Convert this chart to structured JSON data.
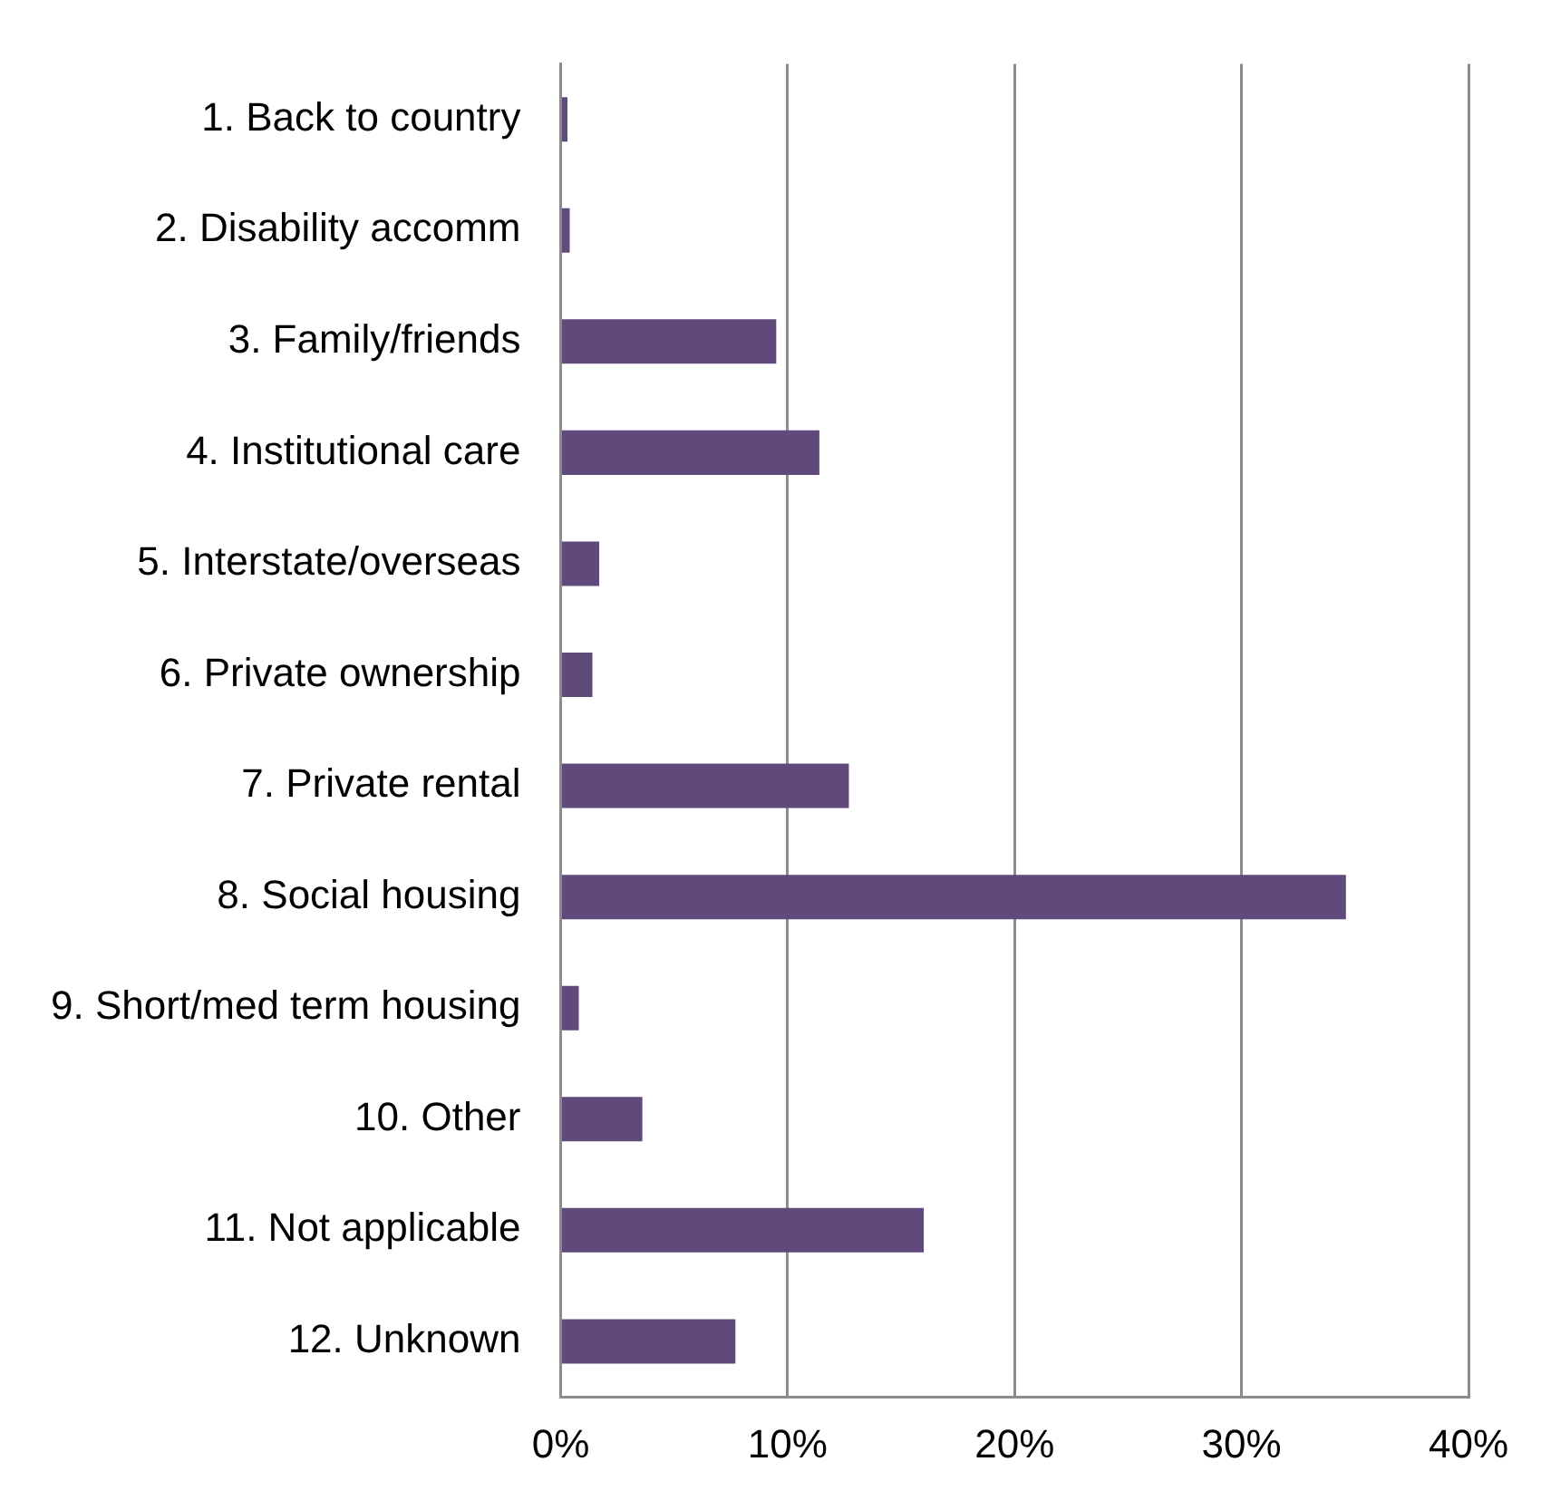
{
  "chart_data": {
    "type": "bar",
    "orientation": "horizontal",
    "categories": [
      "1. Back to country",
      "2. Disability accomm",
      "3. Family/friends",
      "4. Institutional care",
      "5. Interstate/overseas",
      "6. Private ownership",
      "7. Private rental",
      "8. Social housing",
      "9. Short/med term housing",
      "10. Other",
      "11. Not applicable",
      "12. Unknown"
    ],
    "values": [
      0.3,
      0.4,
      9.5,
      11.4,
      1.7,
      1.4,
      12.7,
      34.6,
      0.8,
      3.6,
      16.0,
      7.7
    ],
    "color": "#604a7b",
    "xlim": [
      0,
      40
    ],
    "xticks": [
      {
        "value": 0,
        "label": "0%"
      },
      {
        "value": 10,
        "label": "10%"
      },
      {
        "value": 20,
        "label": "20%"
      },
      {
        "value": 30,
        "label": "30%"
      },
      {
        "value": 40,
        "label": "40%"
      }
    ],
    "grid": "x",
    "legend": false
  }
}
